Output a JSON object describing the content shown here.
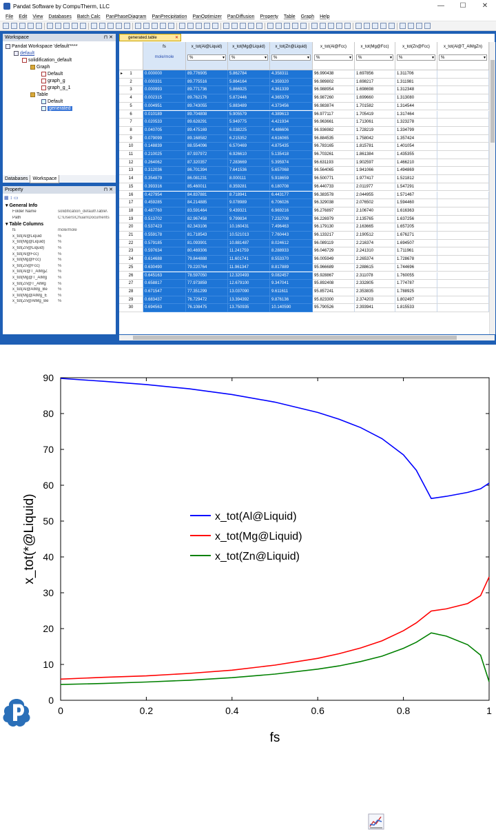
{
  "window": {
    "title": "Pandat Software by CompuTherm, LLC",
    "minimize": "—",
    "maximize": "☐",
    "close": "✕"
  },
  "menu": [
    "File",
    "Edit",
    "View",
    "Databases",
    "Batch Calc",
    "PanPhaseDiagram",
    "PanPrecipitation",
    "PanOptimizer",
    "PanDiffusion",
    "Property",
    "Table",
    "Graph",
    "Help"
  ],
  "workspace": {
    "panel_title": "Workspace",
    "nodes": [
      "Pandat Workspace 'default'****",
      "default",
      "solidification_default",
      "Graph",
      "Default",
      "graph_g",
      "graph_g_1",
      "Table",
      "Default",
      "generated"
    ],
    "tabs": [
      "Databases",
      "Workspace"
    ]
  },
  "property": {
    "panel_title": "Property",
    "general_info": "General Info",
    "general_rows": [
      {
        "k": "Folder Name",
        "v": "solidification_default\\Table\\"
      },
      {
        "k": "Path",
        "v": "C:\\Users\\Chuan\\Documents"
      }
    ],
    "table_columns": "Table Columns",
    "column_rows": [
      {
        "k": "fs",
        "v": "mole/mole"
      },
      {
        "k": "x_tot(Al@Liquid",
        "v": "%"
      },
      {
        "k": "x_tot(Mg@Liquid)",
        "v": "%"
      },
      {
        "k": "x_tot(Zn@Liquid)",
        "v": "%"
      },
      {
        "k": "x_tot(Al@Fcc)",
        "v": "%"
      },
      {
        "k": "x_tot(Mg@Fcc)",
        "v": "%"
      },
      {
        "k": "x_tot(Zn@Fcc)",
        "v": "%"
      },
      {
        "k": "x_tot(Al@T_AlMgZ",
        "v": "%"
      },
      {
        "k": "x_tot(Mg@T_AlMg",
        "v": "%"
      },
      {
        "k": "x_tot(Zn@T_AlMg",
        "v": "%"
      },
      {
        "k": "x_tot(Al@AlMg_Be",
        "v": "%"
      },
      {
        "k": "x_tot(Mg@AlMg_E",
        "v": "%"
      },
      {
        "k": "x_tot(Zn@AlMg_Be",
        "v": "%"
      }
    ]
  },
  "table": {
    "tab_title": "generated.table",
    "tab_close": "✕",
    "columns": [
      {
        "name": "fs",
        "unit": "mole/mole"
      },
      {
        "name": "x_tot(Al@Liquid)",
        "unit": "%"
      },
      {
        "name": "x_tot(Mg@Liquid)",
        "unit": "%"
      },
      {
        "name": "x_tot(Zn@Liquid)",
        "unit": "%"
      },
      {
        "name": "x_tot(Al@Fcc)",
        "unit": "%"
      },
      {
        "name": "x_tot(Mg@Fcc)",
        "unit": "%"
      },
      {
        "name": "x_tot(Zn@Fcc)",
        "unit": "%"
      },
      {
        "name": "x_tot(Al@T_AlMgZn)",
        "unit": "%"
      }
    ],
    "rows": [
      [
        "1",
        "0.000000",
        "89.776905",
        "5.862784",
        "4.358311",
        "96.990438",
        "1.697856",
        "1.311706"
      ],
      [
        "2",
        "0.000331",
        "89.775516",
        "5.864164",
        "4.359320",
        "96.989802",
        "1.698217",
        "1.311981"
      ],
      [
        "3",
        "0.000993",
        "89.771736",
        "5.866925",
        "4.361339",
        "96.988954",
        "1.698698",
        "1.312348"
      ],
      [
        "4",
        "0.002315",
        "89.762176",
        "5.872446",
        "4.365379",
        "96.987260",
        "1.699660",
        "1.313080"
      ],
      [
        "5",
        "0.004951",
        "89.743055",
        "5.883489",
        "4.373456",
        "96.983874",
        "1.701582",
        "1.314544"
      ],
      [
        "6",
        "0.010189",
        "89.704808",
        "5.905579",
        "4.389613",
        "96.977117",
        "1.705419",
        "1.317464"
      ],
      [
        "7",
        "0.020533",
        "89.628291",
        "5.949775",
        "4.421934",
        "96.963661",
        "1.713061",
        "1.323278"
      ],
      [
        "8",
        "0.040705",
        "89.475169",
        "6.038225",
        "4.486606",
        "96.936982",
        "1.728219",
        "1.334799"
      ],
      [
        "9",
        "0.079099",
        "89.168582",
        "6.215352",
        "4.616065",
        "96.884535",
        "1.758042",
        "1.357424"
      ],
      [
        "10",
        "0.148839",
        "88.554096",
        "6.570469",
        "4.875435",
        "96.783165",
        "1.815781",
        "1.401054"
      ],
      [
        "11",
        "0.210025",
        "87.937972",
        "6.926610",
        "5.135418",
        "96.703261",
        "1.861384",
        "1.435355"
      ],
      [
        "12",
        "0.264062",
        "87.320357",
        "7.283669",
        "5.395974",
        "96.631193",
        "1.902597",
        "1.466210"
      ],
      [
        "13",
        "0.312036",
        "86.701394",
        "7.641536",
        "5.657068",
        "96.564065",
        "1.941066",
        "1.494869"
      ],
      [
        "14",
        "0.354879",
        "86.081231",
        "8.000111",
        "5.918659",
        "96.500771",
        "1.977417",
        "1.521812"
      ],
      [
        "15",
        "0.393316",
        "85.460011",
        "8.359281",
        "6.180708",
        "96.440733",
        "2.011977",
        "1.547291"
      ],
      [
        "16",
        "0.427954",
        "84.837881",
        "8.718941",
        "6.443177",
        "96.383578",
        "2.044955",
        "1.571467"
      ],
      [
        "17",
        "0.459285",
        "84.214885",
        "9.078989",
        "6.706026",
        "96.329038",
        "2.076502",
        "1.594460"
      ],
      [
        "18",
        "0.487760",
        "83.591464",
        "9.439321",
        "6.969216",
        "96.276897",
        "2.106740",
        "1.616363"
      ],
      [
        "19",
        "0.513702",
        "82.967458",
        "9.799834",
        "7.232708",
        "96.226979",
        "2.135765",
        "1.637256"
      ],
      [
        "20",
        "0.537423",
        "82.343106",
        "10.160431",
        "7.496463",
        "96.179130",
        "2.163665",
        "1.657205"
      ],
      [
        "21",
        "0.559178",
        "81.718543",
        "10.521013",
        "7.760443",
        "96.133217",
        "2.190512",
        "1.676271"
      ],
      [
        "22",
        "0.579185",
        "81.093901",
        "10.881487",
        "8.024612",
        "96.089119",
        "2.216374",
        "1.694507"
      ],
      [
        "23",
        "0.597634",
        "80.469306",
        "11.241759",
        "8.288933",
        "96.046729",
        "2.241310",
        "1.711961"
      ],
      [
        "24",
        "0.614688",
        "79.844888",
        "11.601741",
        "8.553370",
        "96.005949",
        "2.265374",
        "1.728678"
      ],
      [
        "25",
        "0.630490",
        "79.220764",
        "11.961347",
        "8.817889",
        "95.966689",
        "2.288615",
        "1.744696"
      ],
      [
        "26",
        "0.645163",
        "78.597050",
        "12.320493",
        "9.082457",
        "95.928867",
        "2.311078",
        "1.760055"
      ],
      [
        "27",
        "0.658817",
        "77.973859",
        "12.679100",
        "9.347041",
        "95.892408",
        "2.332805",
        "1.774787"
      ],
      [
        "28",
        "0.671547",
        "77.351299",
        "13.037090",
        "9.611611",
        "95.857241",
        "2.353835",
        "1.788925"
      ],
      [
        "29",
        "0.683437",
        "76.729472",
        "13.394392",
        "9.876136",
        "95.823300",
        "2.374203",
        "1.802497"
      ],
      [
        "30",
        "0.694563",
        "76.108475",
        "13.750935",
        "10.140590",
        "95.790526",
        "2.393941",
        "1.815533"
      ]
    ]
  },
  "chart_data": {
    "type": "line",
    "xlabel": "fs",
    "ylabel": "x_tot(*@Liquid)",
    "xlim": [
      0,
      1
    ],
    "ylim": [
      0,
      90
    ],
    "xticks": [
      "0",
      "0.2",
      "0.4",
      "0.6",
      "0.8",
      "1"
    ],
    "yticks": [
      "0",
      "10",
      "20",
      "30",
      "40",
      "50",
      "60",
      "70",
      "80",
      "90"
    ],
    "legend_position": "center-left",
    "series": [
      {
        "name": "x_tot(Al@Liquid)",
        "color": "#0000ff",
        "x": [
          0,
          0.1,
          0.2,
          0.3,
          0.4,
          0.5,
          0.6,
          0.65,
          0.7,
          0.75,
          0.8,
          0.83,
          0.865,
          0.9,
          0.95,
          0.98,
          1.0
        ],
        "y": [
          89.8,
          89.0,
          88.1,
          86.9,
          85.3,
          83.2,
          80.3,
          78.4,
          76.1,
          73.0,
          68.5,
          64.2,
          56.3,
          56.9,
          58.0,
          59.0,
          60.6
        ]
      },
      {
        "name": "x_tot(Mg@Liquid)",
        "color": "#ff0000",
        "x": [
          0,
          0.1,
          0.2,
          0.3,
          0.4,
          0.5,
          0.6,
          0.65,
          0.7,
          0.75,
          0.8,
          0.83,
          0.865,
          0.9,
          0.95,
          0.98,
          1.0
        ],
        "y": [
          5.9,
          6.4,
          6.8,
          7.5,
          8.4,
          9.8,
          11.7,
          13.0,
          14.6,
          16.6,
          19.4,
          21.6,
          24.9,
          25.5,
          27.0,
          29.2,
          34.4
        ]
      },
      {
        "name": "x_tot(Zn@Liquid)",
        "color": "#008000",
        "x": [
          0,
          0.1,
          0.2,
          0.3,
          0.4,
          0.5,
          0.6,
          0.65,
          0.7,
          0.75,
          0.8,
          0.83,
          0.865,
          0.9,
          0.95,
          0.98,
          1.0
        ],
        "y": [
          4.4,
          4.7,
          5.1,
          5.6,
          6.3,
          7.3,
          8.7,
          9.6,
          10.8,
          12.3,
          14.5,
          16.2,
          18.8,
          17.9,
          15.5,
          12.6,
          5.2
        ]
      }
    ]
  },
  "colors": {
    "accent": "#1e5fb5",
    "selection": "#1e75d6",
    "logo": "#2a6fb8"
  }
}
